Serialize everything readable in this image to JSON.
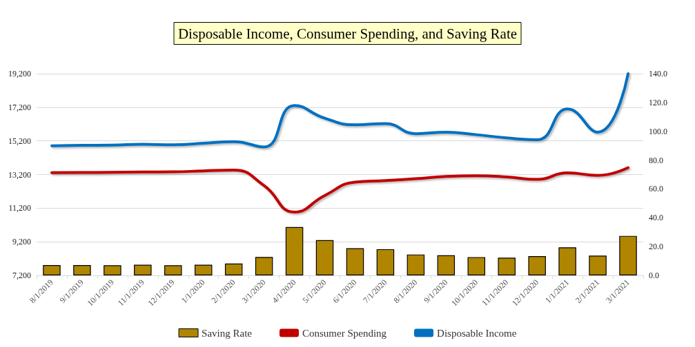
{
  "chart_data": {
    "type": "line",
    "title": "Disposable Income, Consumer Spending, and Saving Rate",
    "categories": [
      "8/1/2019",
      "9/1/2019",
      "10/1/2019",
      "11/1/2019",
      "12/1/2019",
      "1/1/2020",
      "2/1/2020",
      "3/1/2020",
      "4/1/2020",
      "5/1/2020",
      "6/1/2020",
      "7/1/2020",
      "8/1/2020",
      "9/1/2020",
      "10/1/2020",
      "11/1/2020",
      "12/1/2020",
      "1/1/2021",
      "2/1/2021",
      "3/1/2021"
    ],
    "series": [
      {
        "name": "Saving Rate",
        "type": "bar",
        "axis": "y2",
        "color": "#b08500",
        "values": [
          7.2,
          7.2,
          7.0,
          7.4,
          7.0,
          7.4,
          8.2,
          12.8,
          33.6,
          24.5,
          18.9,
          18.2,
          14.5,
          14.0,
          12.7,
          12.3,
          13.4,
          19.5,
          13.7,
          27.4
        ]
      },
      {
        "name": "Consumer Spending",
        "color": "#c00000",
        "values": [
          13310,
          13320,
          13330,
          13350,
          13360,
          13420,
          13470,
          12540,
          10970,
          11950,
          12750,
          12840,
          12950,
          13090,
          13130,
          13060,
          12910,
          13300,
          13150,
          13610
        ]
      },
      {
        "name": "Disposable Income",
        "color": "#0070c0",
        "values": [
          14910,
          14940,
          14950,
          15000,
          14970,
          15060,
          15160,
          14840,
          17310,
          16550,
          16160,
          16230,
          15630,
          15720,
          15570,
          15380,
          15270,
          17100,
          15720,
          19200
        ]
      }
    ],
    "ylim": [
      7200,
      19200
    ],
    "yticks": [
      {
        "value": 7200,
        "label": "7,200"
      },
      {
        "value": 9200,
        "label": "9,200"
      },
      {
        "value": 11200,
        "label": "11,200"
      },
      {
        "value": 13200,
        "label": "13,200"
      },
      {
        "value": 15200,
        "label": "15,200"
      },
      {
        "value": 17200,
        "label": "17,200"
      },
      {
        "value": 19200,
        "label": "19,200"
      }
    ],
    "y2lim": [
      0,
      140
    ],
    "y2ticks": [
      {
        "value": 0,
        "label": "0.0"
      },
      {
        "value": 20,
        "label": "20.0"
      },
      {
        "value": 40,
        "label": "40.0"
      },
      {
        "value": 60,
        "label": "60.0"
      },
      {
        "value": 80,
        "label": "80.0"
      },
      {
        "value": 100,
        "label": "100.0"
      },
      {
        "value": 120,
        "label": "120.0"
      },
      {
        "value": 140,
        "label": "140.0"
      }
    ],
    "grid": "y",
    "legend": "bottom",
    "marker": "none",
    "line_style": "solid"
  }
}
